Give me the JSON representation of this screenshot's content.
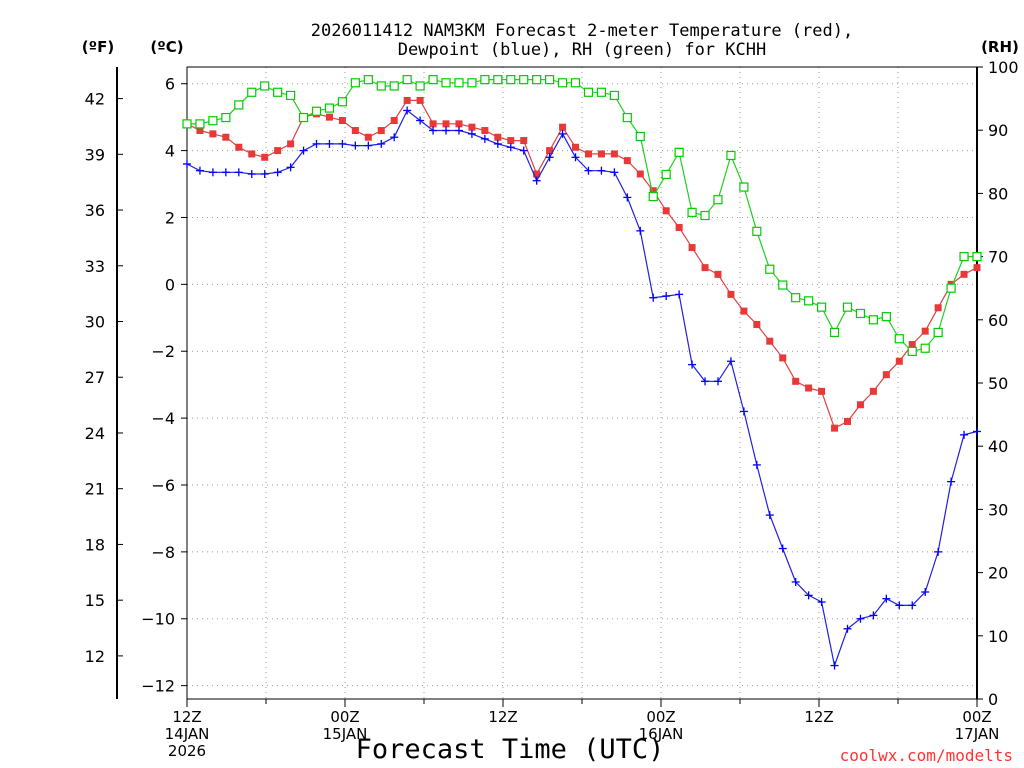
{
  "chart_data": {
    "type": "line",
    "title_line1": "2026011412 NAM3KM Forecast 2-meter Temperature (red),",
    "title_line2": "Dewpoint (blue), RH (green) for KCHH",
    "xlabel": "Forecast Time (UTC)",
    "credit": "coolwx.com/modelts",
    "units": {
      "fahrenheit": "(ºF)",
      "celsius": "(ºC)",
      "rh": "(RH)"
    },
    "ylim_c": [
      -12.4,
      6.5
    ],
    "ylim_rh": [
      0,
      100
    ],
    "hours_range": [
      0,
      60
    ],
    "yticks_c": [
      6,
      4,
      2,
      0,
      -2,
      -4,
      -6,
      -8,
      -10,
      -12
    ],
    "yticks_f": [
      42,
      39,
      36,
      33,
      30,
      27,
      24,
      21,
      18,
      15,
      12
    ],
    "yticks_rh": [
      100,
      90,
      80,
      70,
      60,
      50,
      40,
      30,
      20,
      10,
      0
    ],
    "xticks": [
      {
        "hour": 0,
        "lines": [
          "12Z",
          "14JAN",
          "2026"
        ]
      },
      {
        "hour": 12,
        "lines": [
          "00Z",
          "15JAN"
        ]
      },
      {
        "hour": 24,
        "lines": [
          "12Z"
        ]
      },
      {
        "hour": 36,
        "lines": [
          "00Z",
          "16JAN"
        ]
      },
      {
        "hour": 48,
        "lines": [
          "12Z"
        ]
      },
      {
        "hour": 60,
        "lines": [
          "00Z",
          "17JAN"
        ]
      }
    ],
    "series": [
      {
        "name": "2-meter Temperature",
        "unit": "C",
        "color": "#ff0000",
        "marker": "filled-square",
        "stroke": "#e04040",
        "values": [
          4.8,
          4.6,
          4.5,
          4.4,
          4.1,
          3.9,
          3.8,
          4.0,
          4.2,
          5.0,
          5.1,
          5.0,
          4.9,
          4.6,
          4.4,
          4.6,
          4.9,
          5.5,
          5.5,
          4.8,
          4.8,
          4.8,
          4.7,
          4.6,
          4.4,
          4.3,
          4.3,
          3.3,
          4.0,
          4.7,
          4.1,
          3.9,
          3.9,
          3.9,
          3.7,
          3.3,
          2.8,
          2.2,
          1.7,
          1.1,
          0.5,
          0.3,
          -0.3,
          -0.8,
          -1.2,
          -1.7,
          -2.2,
          -2.9,
          -3.1,
          -3.2,
          -4.3,
          -4.1,
          -3.6,
          -3.2,
          -2.7,
          -2.3,
          -1.8,
          -1.4,
          -0.7,
          0.0,
          0.3,
          0.5
        ]
      },
      {
        "name": "Dewpoint",
        "unit": "C",
        "color": "#0000ff",
        "marker": "plus",
        "stroke": "#2020e0",
        "values": [
          3.6,
          3.4,
          3.35,
          3.35,
          3.35,
          3.3,
          3.3,
          3.35,
          3.5,
          4.0,
          4.2,
          4.2,
          4.2,
          4.15,
          4.15,
          4.2,
          4.4,
          5.2,
          4.9,
          4.6,
          4.6,
          4.6,
          4.5,
          4.35,
          4.2,
          4.1,
          4.0,
          3.1,
          3.8,
          4.5,
          3.8,
          3.4,
          3.4,
          3.35,
          2.6,
          1.6,
          -0.4,
          -0.35,
          -0.3,
          -2.4,
          -2.9,
          -2.9,
          -2.3,
          -3.8,
          -5.4,
          -6.9,
          -7.9,
          -8.9,
          -9.3,
          -9.5,
          -11.4,
          -10.3,
          -10.0,
          -9.9,
          -9.4,
          -9.6,
          -9.6,
          -9.2,
          -8.0,
          -5.9,
          -4.5,
          -4.4
        ]
      },
      {
        "name": "RH",
        "unit": "%",
        "color": "#00cc00",
        "marker": "open-square",
        "stroke": "#20d020",
        "values": [
          91,
          91,
          91.5,
          92,
          94,
          96,
          97,
          96,
          95.5,
          92,
          93,
          93.5,
          94.5,
          97.5,
          98,
          97,
          97,
          98,
          97,
          98,
          97.5,
          97.5,
          97.5,
          98,
          98,
          98,
          98,
          98,
          98,
          97.5,
          97.5,
          96,
          96,
          95.5,
          92,
          89,
          79.5,
          83,
          86.5,
          77,
          76.5,
          79,
          86,
          81,
          74,
          68,
          65.5,
          63.5,
          63,
          62,
          58,
          62,
          61,
          60,
          60.5,
          57,
          55,
          55.5,
          58,
          65,
          70,
          70
        ]
      }
    ]
  }
}
